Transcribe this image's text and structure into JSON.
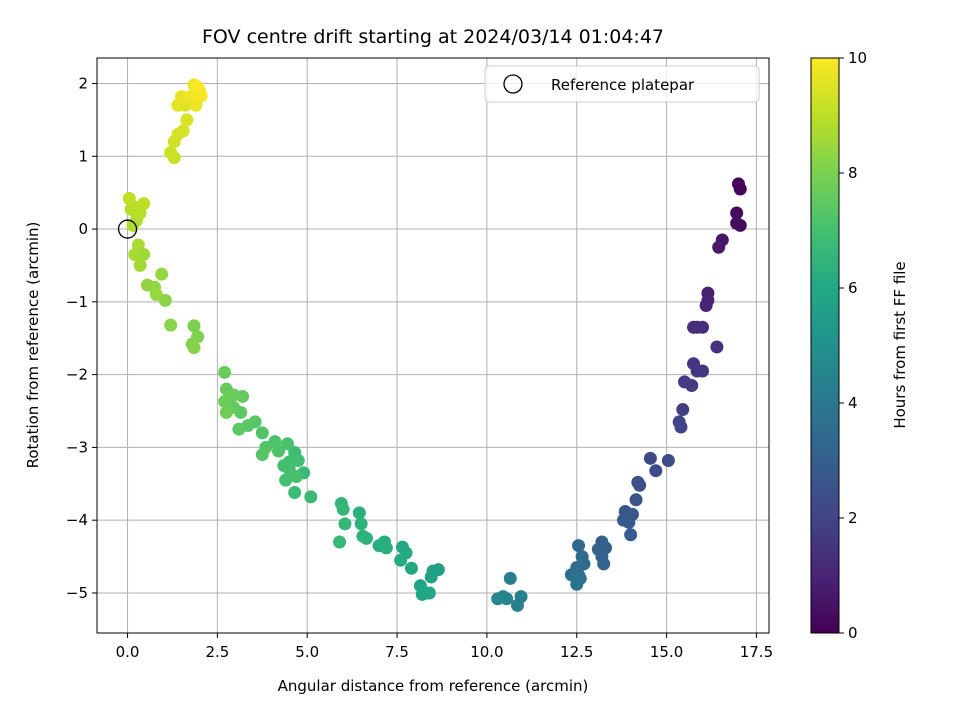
{
  "chart_data": {
    "type": "scatter",
    "title": "FOV centre drift starting at 2024/03/14 01:04:47",
    "xlabel": "Angular distance from reference (arcmin)",
    "ylabel": "Rotation from reference (arcmin)",
    "xlim": [
      -0.85,
      17.85
    ],
    "ylim": [
      -5.55,
      2.35
    ],
    "xticks": [
      0.0,
      2.5,
      5.0,
      7.5,
      10.0,
      12.5,
      15.0,
      17.5
    ],
    "xtick_labels": [
      "0.0",
      "2.5",
      "5.0",
      "7.5",
      "10.0",
      "12.5",
      "15.0",
      "17.5"
    ],
    "yticks": [
      2,
      1,
      0,
      -1,
      -2,
      -3,
      -4,
      -5
    ],
    "ytick_labels": [
      "2",
      "1",
      "0",
      "−1",
      "−2",
      "−3",
      "−4",
      "−5"
    ],
    "grid": true,
    "legend": {
      "position": "top-right",
      "entries": [
        "Reference platepar"
      ]
    },
    "reference_point": {
      "x": 0.0,
      "y": 0.0
    },
    "colorbar": {
      "label": "Hours from first FF file",
      "range": [
        0,
        10
      ],
      "ticks": [
        0,
        2,
        4,
        6,
        8,
        10
      ],
      "tick_labels": [
        "0",
        "2",
        "4",
        "6",
        "8",
        "10"
      ],
      "colormap": "viridis"
    },
    "points": [
      [
        17.0,
        0.62,
        0.1
      ],
      [
        17.05,
        0.55,
        0.15
      ],
      [
        16.95,
        0.22,
        0.25
      ],
      [
        17.05,
        0.05,
        0.3
      ],
      [
        16.95,
        0.08,
        0.35
      ],
      [
        16.55,
        -0.15,
        0.6
      ],
      [
        16.45,
        -0.25,
        0.7
      ],
      [
        16.15,
        -0.88,
        0.9
      ],
      [
        16.1,
        -1.05,
        1.0
      ],
      [
        16.15,
        -0.98,
        1.05
      ],
      [
        16.0,
        -1.35,
        1.2
      ],
      [
        15.85,
        -1.35,
        1.3
      ],
      [
        15.75,
        -1.35,
        1.35
      ],
      [
        16.4,
        -1.62,
        1.4
      ],
      [
        15.75,
        -1.85,
        1.5
      ],
      [
        15.85,
        -1.95,
        1.55
      ],
      [
        16.0,
        -1.95,
        1.6
      ],
      [
        15.5,
        -2.1,
        1.7
      ],
      [
        15.7,
        -2.15,
        1.75
      ],
      [
        15.45,
        -2.48,
        1.85
      ],
      [
        15.35,
        -2.65,
        1.95
      ],
      [
        15.4,
        -2.72,
        2.0
      ],
      [
        14.55,
        -3.15,
        2.2
      ],
      [
        15.05,
        -3.18,
        2.25
      ],
      [
        14.7,
        -3.32,
        2.3
      ],
      [
        14.2,
        -3.48,
        2.4
      ],
      [
        14.25,
        -3.52,
        2.45
      ],
      [
        14.15,
        -3.72,
        2.55
      ],
      [
        13.85,
        -3.88,
        2.65
      ],
      [
        14.05,
        -3.92,
        2.7
      ],
      [
        13.8,
        -4.0,
        2.75
      ],
      [
        13.95,
        -4.03,
        2.8
      ],
      [
        14.0,
        -4.2,
        2.85
      ],
      [
        13.2,
        -4.3,
        3.0
      ],
      [
        13.3,
        -4.38,
        3.05
      ],
      [
        13.1,
        -4.4,
        3.1
      ],
      [
        13.2,
        -4.5,
        3.15
      ],
      [
        13.25,
        -4.6,
        3.2
      ],
      [
        12.55,
        -4.35,
        3.4
      ],
      [
        12.65,
        -4.5,
        3.45
      ],
      [
        12.7,
        -4.6,
        3.5
      ],
      [
        12.5,
        -4.65,
        3.55
      ],
      [
        12.55,
        -4.75,
        3.6
      ],
      [
        12.35,
        -4.75,
        3.65
      ],
      [
        12.6,
        -4.8,
        3.7
      ],
      [
        12.5,
        -4.88,
        3.75
      ],
      [
        10.65,
        -4.8,
        4.2
      ],
      [
        10.95,
        -5.05,
        4.3
      ],
      [
        10.85,
        -5.17,
        4.35
      ],
      [
        10.45,
        -5.05,
        4.45
      ],
      [
        10.3,
        -5.08,
        4.5
      ],
      [
        10.55,
        -5.08,
        4.55
      ],
      [
        8.65,
        -4.68,
        5.6
      ],
      [
        8.5,
        -4.7,
        5.65
      ],
      [
        8.45,
        -4.78,
        5.7
      ],
      [
        8.15,
        -4.9,
        5.75
      ],
      [
        8.3,
        -5.0,
        5.8
      ],
      [
        8.2,
        -5.02,
        5.85
      ],
      [
        8.4,
        -5.0,
        5.9
      ],
      [
        7.9,
        -4.66,
        5.95
      ],
      [
        7.65,
        -4.37,
        6.0
      ],
      [
        7.75,
        -4.45,
        6.05
      ],
      [
        7.6,
        -4.55,
        6.1
      ],
      [
        7.15,
        -4.3,
        6.15
      ],
      [
        7.0,
        -4.35,
        6.2
      ],
      [
        7.2,
        -4.38,
        6.25
      ],
      [
        6.45,
        -3.9,
        6.3
      ],
      [
        6.5,
        -4.05,
        6.35
      ],
      [
        6.55,
        -4.22,
        6.4
      ],
      [
        6.65,
        -4.25,
        6.45
      ],
      [
        5.95,
        -3.77,
        6.5
      ],
      [
        6.0,
        -3.85,
        6.55
      ],
      [
        6.05,
        -4.05,
        6.6
      ],
      [
        5.9,
        -4.3,
        6.65
      ],
      [
        4.9,
        -3.35,
        6.7
      ],
      [
        5.1,
        -3.68,
        6.75
      ],
      [
        4.65,
        -3.62,
        6.8
      ],
      [
        4.65,
        -3.07,
        6.85
      ],
      [
        4.75,
        -3.18,
        6.9
      ],
      [
        4.5,
        -3.2,
        6.92
      ],
      [
        4.35,
        -3.25,
        6.95
      ],
      [
        4.5,
        -3.3,
        7.0
      ],
      [
        4.4,
        -3.45,
        7.02
      ],
      [
        4.7,
        -3.4,
        7.05
      ],
      [
        4.45,
        -2.95,
        7.1
      ],
      [
        4.1,
        -2.92,
        7.15
      ],
      [
        4.2,
        -3.05,
        7.2
      ],
      [
        3.75,
        -2.8,
        7.25
      ],
      [
        3.85,
        -3.0,
        7.3
      ],
      [
        3.75,
        -3.1,
        7.33
      ],
      [
        3.55,
        -2.65,
        7.37
      ],
      [
        3.35,
        -2.7,
        7.4
      ],
      [
        3.1,
        -2.75,
        7.45
      ],
      [
        3.15,
        -2.52,
        7.5
      ],
      [
        2.95,
        -2.45,
        7.55
      ],
      [
        3.2,
        -2.3,
        7.6
      ],
      [
        2.75,
        -2.2,
        7.63
      ],
      [
        2.95,
        -2.28,
        7.66
      ],
      [
        2.7,
        -1.97,
        7.7
      ],
      [
        2.7,
        -2.37,
        7.75
      ],
      [
        2.75,
        -2.52,
        7.8
      ],
      [
        1.85,
        -1.33,
        8.0
      ],
      [
        1.95,
        -1.48,
        8.05
      ],
      [
        1.8,
        -1.58,
        8.1
      ],
      [
        1.85,
        -1.63,
        8.15
      ],
      [
        1.2,
        -1.32,
        8.2
      ],
      [
        1.05,
        -0.98,
        8.25
      ],
      [
        0.75,
        -0.8,
        8.3
      ],
      [
        0.55,
        -0.77,
        8.35
      ],
      [
        0.95,
        -0.62,
        8.4
      ],
      [
        0.8,
        -0.9,
        8.45
      ],
      [
        0.45,
        -0.35,
        8.55
      ],
      [
        0.35,
        -0.5,
        8.6
      ],
      [
        0.2,
        -0.35,
        8.65
      ],
      [
        0.3,
        -0.22,
        8.7
      ],
      [
        0.15,
        0.05,
        8.75
      ],
      [
        0.25,
        0.12,
        8.8
      ],
      [
        0.1,
        0.27,
        8.85
      ],
      [
        0.35,
        0.22,
        8.9
      ],
      [
        0.2,
        0.3,
        8.95
      ],
      [
        0.45,
        0.35,
        9.0
      ],
      [
        0.05,
        0.42,
        9.05
      ],
      [
        1.3,
        0.98,
        9.2
      ],
      [
        1.2,
        1.05,
        9.25
      ],
      [
        1.3,
        1.2,
        9.3
      ],
      [
        1.4,
        1.3,
        9.35
      ],
      [
        1.55,
        1.35,
        9.4
      ],
      [
        1.65,
        1.5,
        9.45
      ],
      [
        1.6,
        1.7,
        9.55
      ],
      [
        1.4,
        1.7,
        9.6
      ],
      [
        1.5,
        1.82,
        9.65
      ],
      [
        1.9,
        1.7,
        9.7
      ],
      [
        1.75,
        1.82,
        9.75
      ],
      [
        1.85,
        1.98,
        9.8
      ],
      [
        2.0,
        1.9,
        9.85
      ],
      [
        2.05,
        1.83,
        9.9
      ],
      [
        1.95,
        1.95,
        9.95
      ]
    ]
  }
}
